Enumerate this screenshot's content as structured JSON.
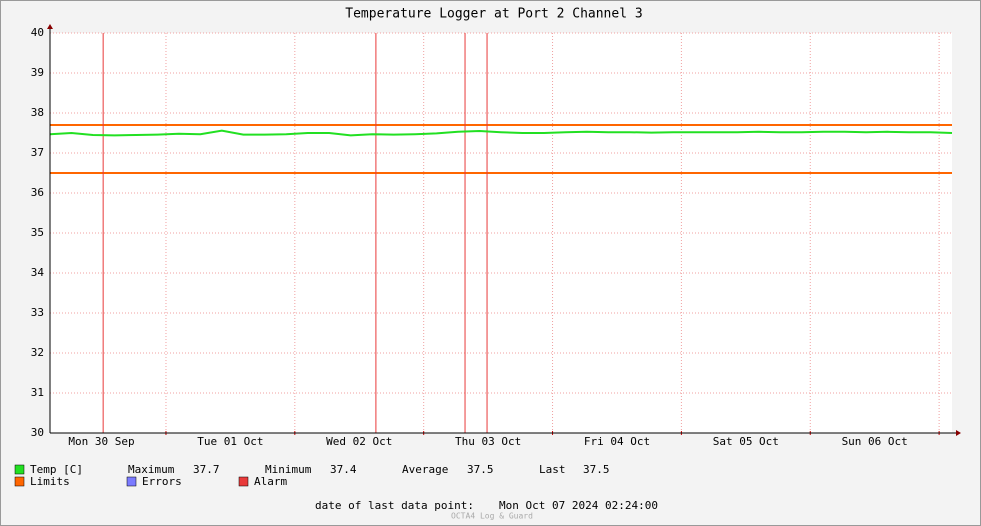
{
  "chart_data": {
    "type": "line",
    "title": "Temperature Logger at Port 2 Channel 3",
    "x": [
      0,
      4,
      8,
      12,
      16,
      20,
      24,
      28,
      32,
      36,
      40,
      44,
      48,
      52,
      56,
      60,
      64,
      68,
      72,
      76,
      80,
      84,
      88,
      92,
      96,
      100,
      104,
      108,
      112,
      116,
      120,
      124,
      128,
      132,
      136,
      140,
      144,
      148,
      152,
      156,
      160,
      164,
      168
    ],
    "series": [
      {
        "name": "Temp [C]",
        "color": "#22e022",
        "values": [
          37.47,
          37.5,
          37.45,
          37.44,
          37.45,
          37.46,
          37.48,
          37.47,
          37.56,
          37.46,
          37.46,
          37.47,
          37.5,
          37.5,
          37.44,
          37.47,
          37.46,
          37.47,
          37.49,
          37.53,
          37.55,
          37.52,
          37.5,
          37.5,
          37.52,
          37.53,
          37.52,
          37.52,
          37.51,
          37.52,
          37.52,
          37.52,
          37.52,
          37.53,
          37.52,
          37.52,
          37.53,
          37.53,
          37.52,
          37.53,
          37.52,
          37.52,
          37.5
        ]
      }
    ],
    "limits": {
      "name": "Limits",
      "color": "#ff6600",
      "values": [
        37.7,
        36.5
      ]
    },
    "errors": {
      "name": "Errors",
      "color": "#7a7aff"
    },
    "alarms": {
      "name": "Alarm",
      "color": "#e83a3a",
      "x": [
        9.9,
        60.7,
        77.3,
        81.4
      ]
    },
    "stats": [
      {
        "label": "Maximum",
        "value": 37.7
      },
      {
        "label": "Minimum",
        "value": 37.4
      },
      {
        "label": "Average",
        "value": 37.5
      },
      {
        "label": "Last",
        "value": 37.5
      }
    ],
    "xlim": [
      0,
      168
    ],
    "xticks": [
      {
        "value": 9.6,
        "label": "Mon 30 Sep"
      },
      {
        "value": 33.6,
        "label": "Tue 01 Oct"
      },
      {
        "value": 57.6,
        "label": "Wed 02 Oct"
      },
      {
        "value": 81.6,
        "label": "Thu 03 Oct"
      },
      {
        "value": 105.6,
        "label": "Fri 04 Oct"
      },
      {
        "value": 129.6,
        "label": "Sat 05 Oct"
      },
      {
        "value": 153.6,
        "label": "Sun 06 Oct"
      }
    ],
    "xgrid": [
      21.6,
      45.6,
      69.6,
      93.6,
      117.6,
      141.6,
      165.6
    ],
    "ylim": [
      30,
      40
    ],
    "yticks": [
      30,
      31,
      32,
      33,
      34,
      35,
      36,
      37,
      38,
      39,
      40
    ],
    "grid": true,
    "footer": {
      "label": "date of last data point:",
      "value": "Mon Oct 07 2024 02:24:00"
    },
    "credit": "OCTA4 Log & Guard"
  }
}
